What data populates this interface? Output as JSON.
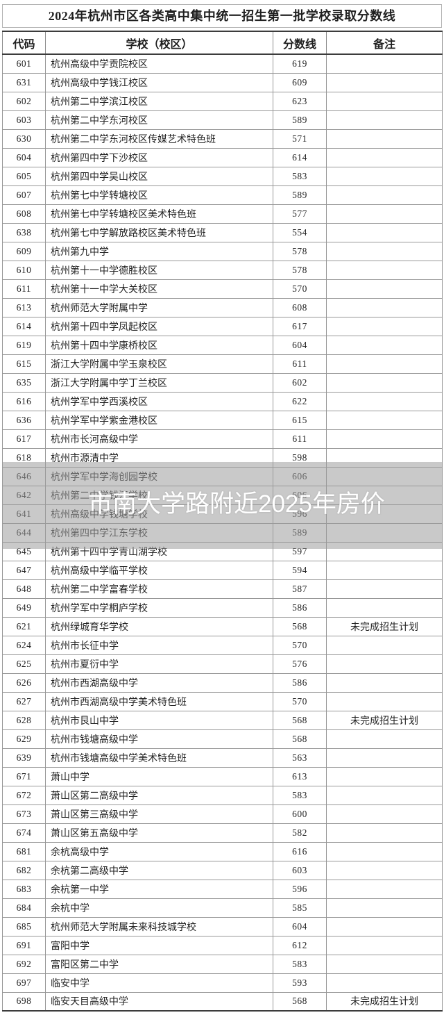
{
  "page": {
    "title": "2024年杭州市区各类高中集中统一招生第一批学校录取分数线"
  },
  "watermark": {
    "text": "市南大学路附近2025年房价",
    "color": "#ffffff"
  },
  "colors": {
    "dim_overlay": "rgba(157,157,157,0.55)",
    "border_light": "#979797",
    "border_dark": "#3c3c3c",
    "text": "#232323"
  },
  "table": {
    "headers": {
      "code": "代码",
      "school": "学校（校区）",
      "score": "分数线",
      "remark": "备注"
    },
    "rows": [
      {
        "code": "601",
        "school": "杭州高级中学贡院校区",
        "score": "619",
        "remark": ""
      },
      {
        "code": "631",
        "school": "杭州高级中学钱江校区",
        "score": "609",
        "remark": ""
      },
      {
        "code": "602",
        "school": "杭州第二中学滨江校区",
        "score": "623",
        "remark": ""
      },
      {
        "code": "603",
        "school": "杭州第二中学东河校区",
        "score": "589",
        "remark": ""
      },
      {
        "code": "630",
        "school": "杭州第二中学东河校区传媒艺术特色班",
        "score": "571",
        "remark": ""
      },
      {
        "code": "604",
        "school": "杭州第四中学下沙校区",
        "score": "614",
        "remark": ""
      },
      {
        "code": "605",
        "school": "杭州第四中学吴山校区",
        "score": "583",
        "remark": ""
      },
      {
        "code": "607",
        "school": "杭州第七中学转塘校区",
        "score": "589",
        "remark": ""
      },
      {
        "code": "608",
        "school": "杭州第七中学转塘校区美术特色班",
        "score": "577",
        "remark": ""
      },
      {
        "code": "638",
        "school": "杭州第七中学解放路校区美术特色班",
        "score": "554",
        "remark": ""
      },
      {
        "code": "609",
        "school": "杭州第九中学",
        "score": "578",
        "remark": ""
      },
      {
        "code": "610",
        "school": "杭州第十一中学德胜校区",
        "score": "578",
        "remark": ""
      },
      {
        "code": "611",
        "school": "杭州第十一中学大关校区",
        "score": "570",
        "remark": ""
      },
      {
        "code": "613",
        "school": "杭州师范大学附属中学",
        "score": "608",
        "remark": ""
      },
      {
        "code": "614",
        "school": "杭州第十四中学凤起校区",
        "score": "617",
        "remark": ""
      },
      {
        "code": "619",
        "school": "杭州第十四中学康桥校区",
        "score": "604",
        "remark": ""
      },
      {
        "code": "615",
        "school": "浙江大学附属中学玉泉校区",
        "score": "611",
        "remark": ""
      },
      {
        "code": "635",
        "school": "浙江大学附属中学丁兰校区",
        "score": "602",
        "remark": ""
      },
      {
        "code": "616",
        "school": "杭州学军中学西溪校区",
        "score": "622",
        "remark": ""
      },
      {
        "code": "636",
        "school": "杭州学军中学紫金港校区",
        "score": "615",
        "remark": ""
      },
      {
        "code": "617",
        "school": "杭州市长河高级中学",
        "score": "611",
        "remark": ""
      },
      {
        "code": "618",
        "school": "杭州市源清中学",
        "score": "598",
        "remark": ""
      },
      {
        "code": "646",
        "school": "杭州学军中学海创园学校",
        "score": "606",
        "remark": ""
      },
      {
        "code": "642",
        "school": "杭州第二中学钱江学校",
        "score": "606",
        "remark": ""
      },
      {
        "code": "641",
        "school": "杭州高级中学钱塘学校",
        "score": "596",
        "remark": ""
      },
      {
        "code": "644",
        "school": "杭州第四中学江东学校",
        "score": "589",
        "remark": ""
      },
      {
        "code": "645",
        "school": "杭州第十四中学青山湖学校",
        "score": "597",
        "remark": ""
      },
      {
        "code": "647",
        "school": "杭州高级中学临平学校",
        "score": "594",
        "remark": ""
      },
      {
        "code": "648",
        "school": "杭州第二中学富春学校",
        "score": "587",
        "remark": ""
      },
      {
        "code": "649",
        "school": "杭州学军中学桐庐学校",
        "score": "586",
        "remark": ""
      },
      {
        "code": "621",
        "school": "杭州绿城育华学校",
        "score": "568",
        "remark": "未完成招生计划"
      },
      {
        "code": "624",
        "school": "杭州市长征中学",
        "score": "570",
        "remark": ""
      },
      {
        "code": "625",
        "school": "杭州市夏衍中学",
        "score": "576",
        "remark": ""
      },
      {
        "code": "626",
        "school": "杭州市西湖高级中学",
        "score": "586",
        "remark": ""
      },
      {
        "code": "627",
        "school": "杭州市西湖高级中学美术特色班",
        "score": "570",
        "remark": ""
      },
      {
        "code": "628",
        "school": "杭州市艮山中学",
        "score": "568",
        "remark": "未完成招生计划"
      },
      {
        "code": "629",
        "school": "杭州市钱塘高级中学",
        "score": "568",
        "remark": ""
      },
      {
        "code": "639",
        "school": "杭州市钱塘高级中学美术特色班",
        "score": "563",
        "remark": ""
      },
      {
        "code": "671",
        "school": "萧山中学",
        "score": "613",
        "remark": ""
      },
      {
        "code": "672",
        "school": "萧山区第二高级中学",
        "score": "583",
        "remark": ""
      },
      {
        "code": "673",
        "school": "萧山区第三高级中学",
        "score": "600",
        "remark": ""
      },
      {
        "code": "674",
        "school": "萧山区第五高级中学",
        "score": "582",
        "remark": ""
      },
      {
        "code": "681",
        "school": "余杭高级中学",
        "score": "616",
        "remark": ""
      },
      {
        "code": "682",
        "school": "余杭第二高级中学",
        "score": "603",
        "remark": ""
      },
      {
        "code": "683",
        "school": "余杭第一中学",
        "score": "596",
        "remark": ""
      },
      {
        "code": "684",
        "school": "余杭中学",
        "score": "585",
        "remark": ""
      },
      {
        "code": "685",
        "school": "杭州师范大学附属未来科技城学校",
        "score": "604",
        "remark": ""
      },
      {
        "code": "691",
        "school": "富阳中学",
        "score": "612",
        "remark": ""
      },
      {
        "code": "692",
        "school": "富阳区第二中学",
        "score": "583",
        "remark": ""
      },
      {
        "code": "697",
        "school": "临安中学",
        "score": "593",
        "remark": ""
      },
      {
        "code": "698",
        "school": "临安天目高级中学",
        "score": "568",
        "remark": "未完成招生计划"
      }
    ]
  }
}
